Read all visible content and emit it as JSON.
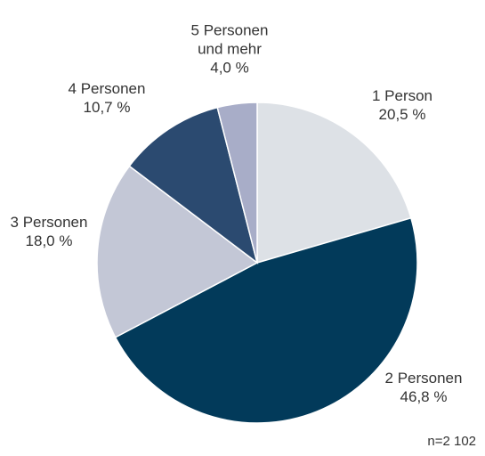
{
  "chart_data": {
    "type": "pie",
    "categories": [
      "1 Person",
      "2 Personen",
      "3 Personen",
      "4 Personen",
      "5 Personen und mehr"
    ],
    "values": [
      20.5,
      46.8,
      18.0,
      10.7,
      4.0
    ],
    "value_labels": [
      "20,5 %",
      "46,8 %",
      "18,0 %",
      "10,7 %",
      "4,0 %"
    ],
    "colors": [
      "#dde1e6",
      "#023a5a",
      "#c3c7d6",
      "#2b4a70",
      "#a8adc8"
    ],
    "note": "n=2 102"
  }
}
